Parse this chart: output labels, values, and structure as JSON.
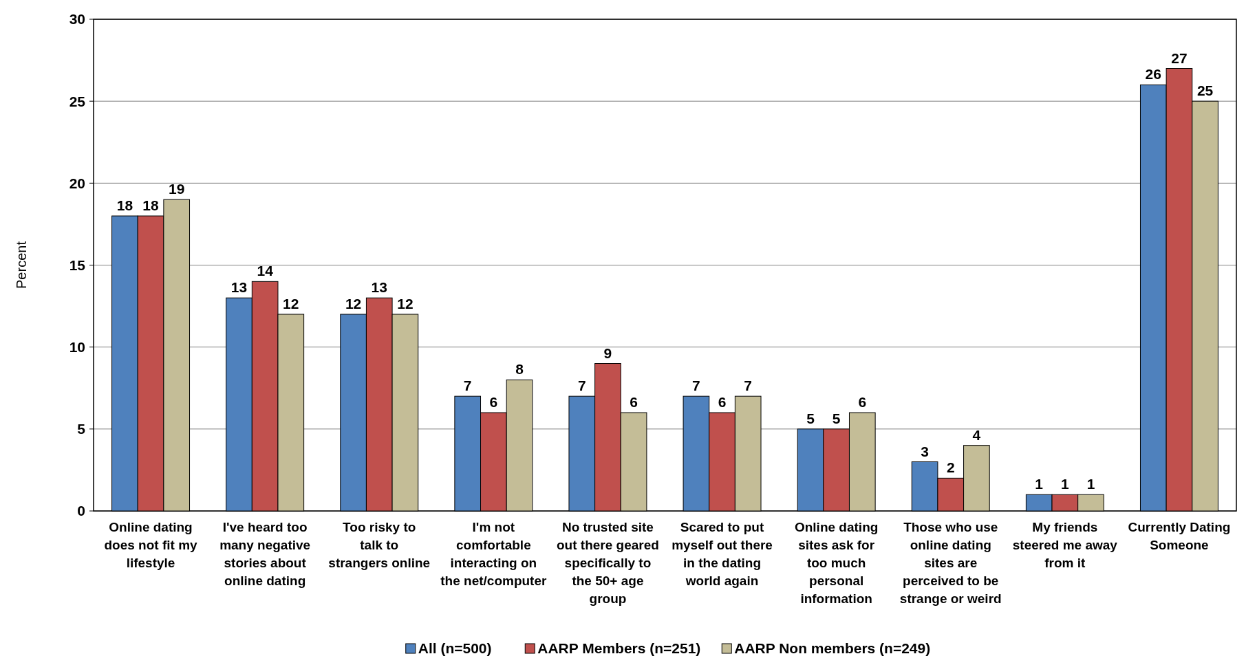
{
  "chart_data": {
    "type": "bar",
    "ylabel": "Percent",
    "categories": [
      "Online dating does not fit my lifestyle",
      "I've heard too many negative stories about online dating",
      "Too risky to talk to strangers online",
      "I'm not comfortable interacting on the net/computer",
      "No trusted site out there geared specifically to the 50+ age group",
      "Scared to put myself out there in the dating world again",
      "Online dating sites ask for too much personal information",
      "Those who use online dating sites are perceived to be strange or weird",
      "My friends steered me away from it",
      "Currently Dating Someone"
    ],
    "series": [
      {
        "name": "All (n=500)",
        "color": "#4f81bd",
        "values": [
          18,
          13,
          12,
          7,
          7,
          7,
          5,
          3,
          1,
          26
        ]
      },
      {
        "name": "AARP Members (n=251)",
        "color": "#c0504d",
        "values": [
          18,
          14,
          13,
          6,
          9,
          6,
          5,
          2,
          1,
          27
        ]
      },
      {
        "name": "AARP Non members (n=249)",
        "color": "#c4bd97",
        "values": [
          19,
          12,
          12,
          8,
          6,
          7,
          6,
          4,
          1,
          25
        ]
      }
    ],
    "ylim": [
      0,
      30
    ],
    "yticks": [
      0,
      5,
      10,
      15,
      20,
      25,
      30
    ],
    "grid": "y",
    "legend": "bottom",
    "data_labels": true
  }
}
